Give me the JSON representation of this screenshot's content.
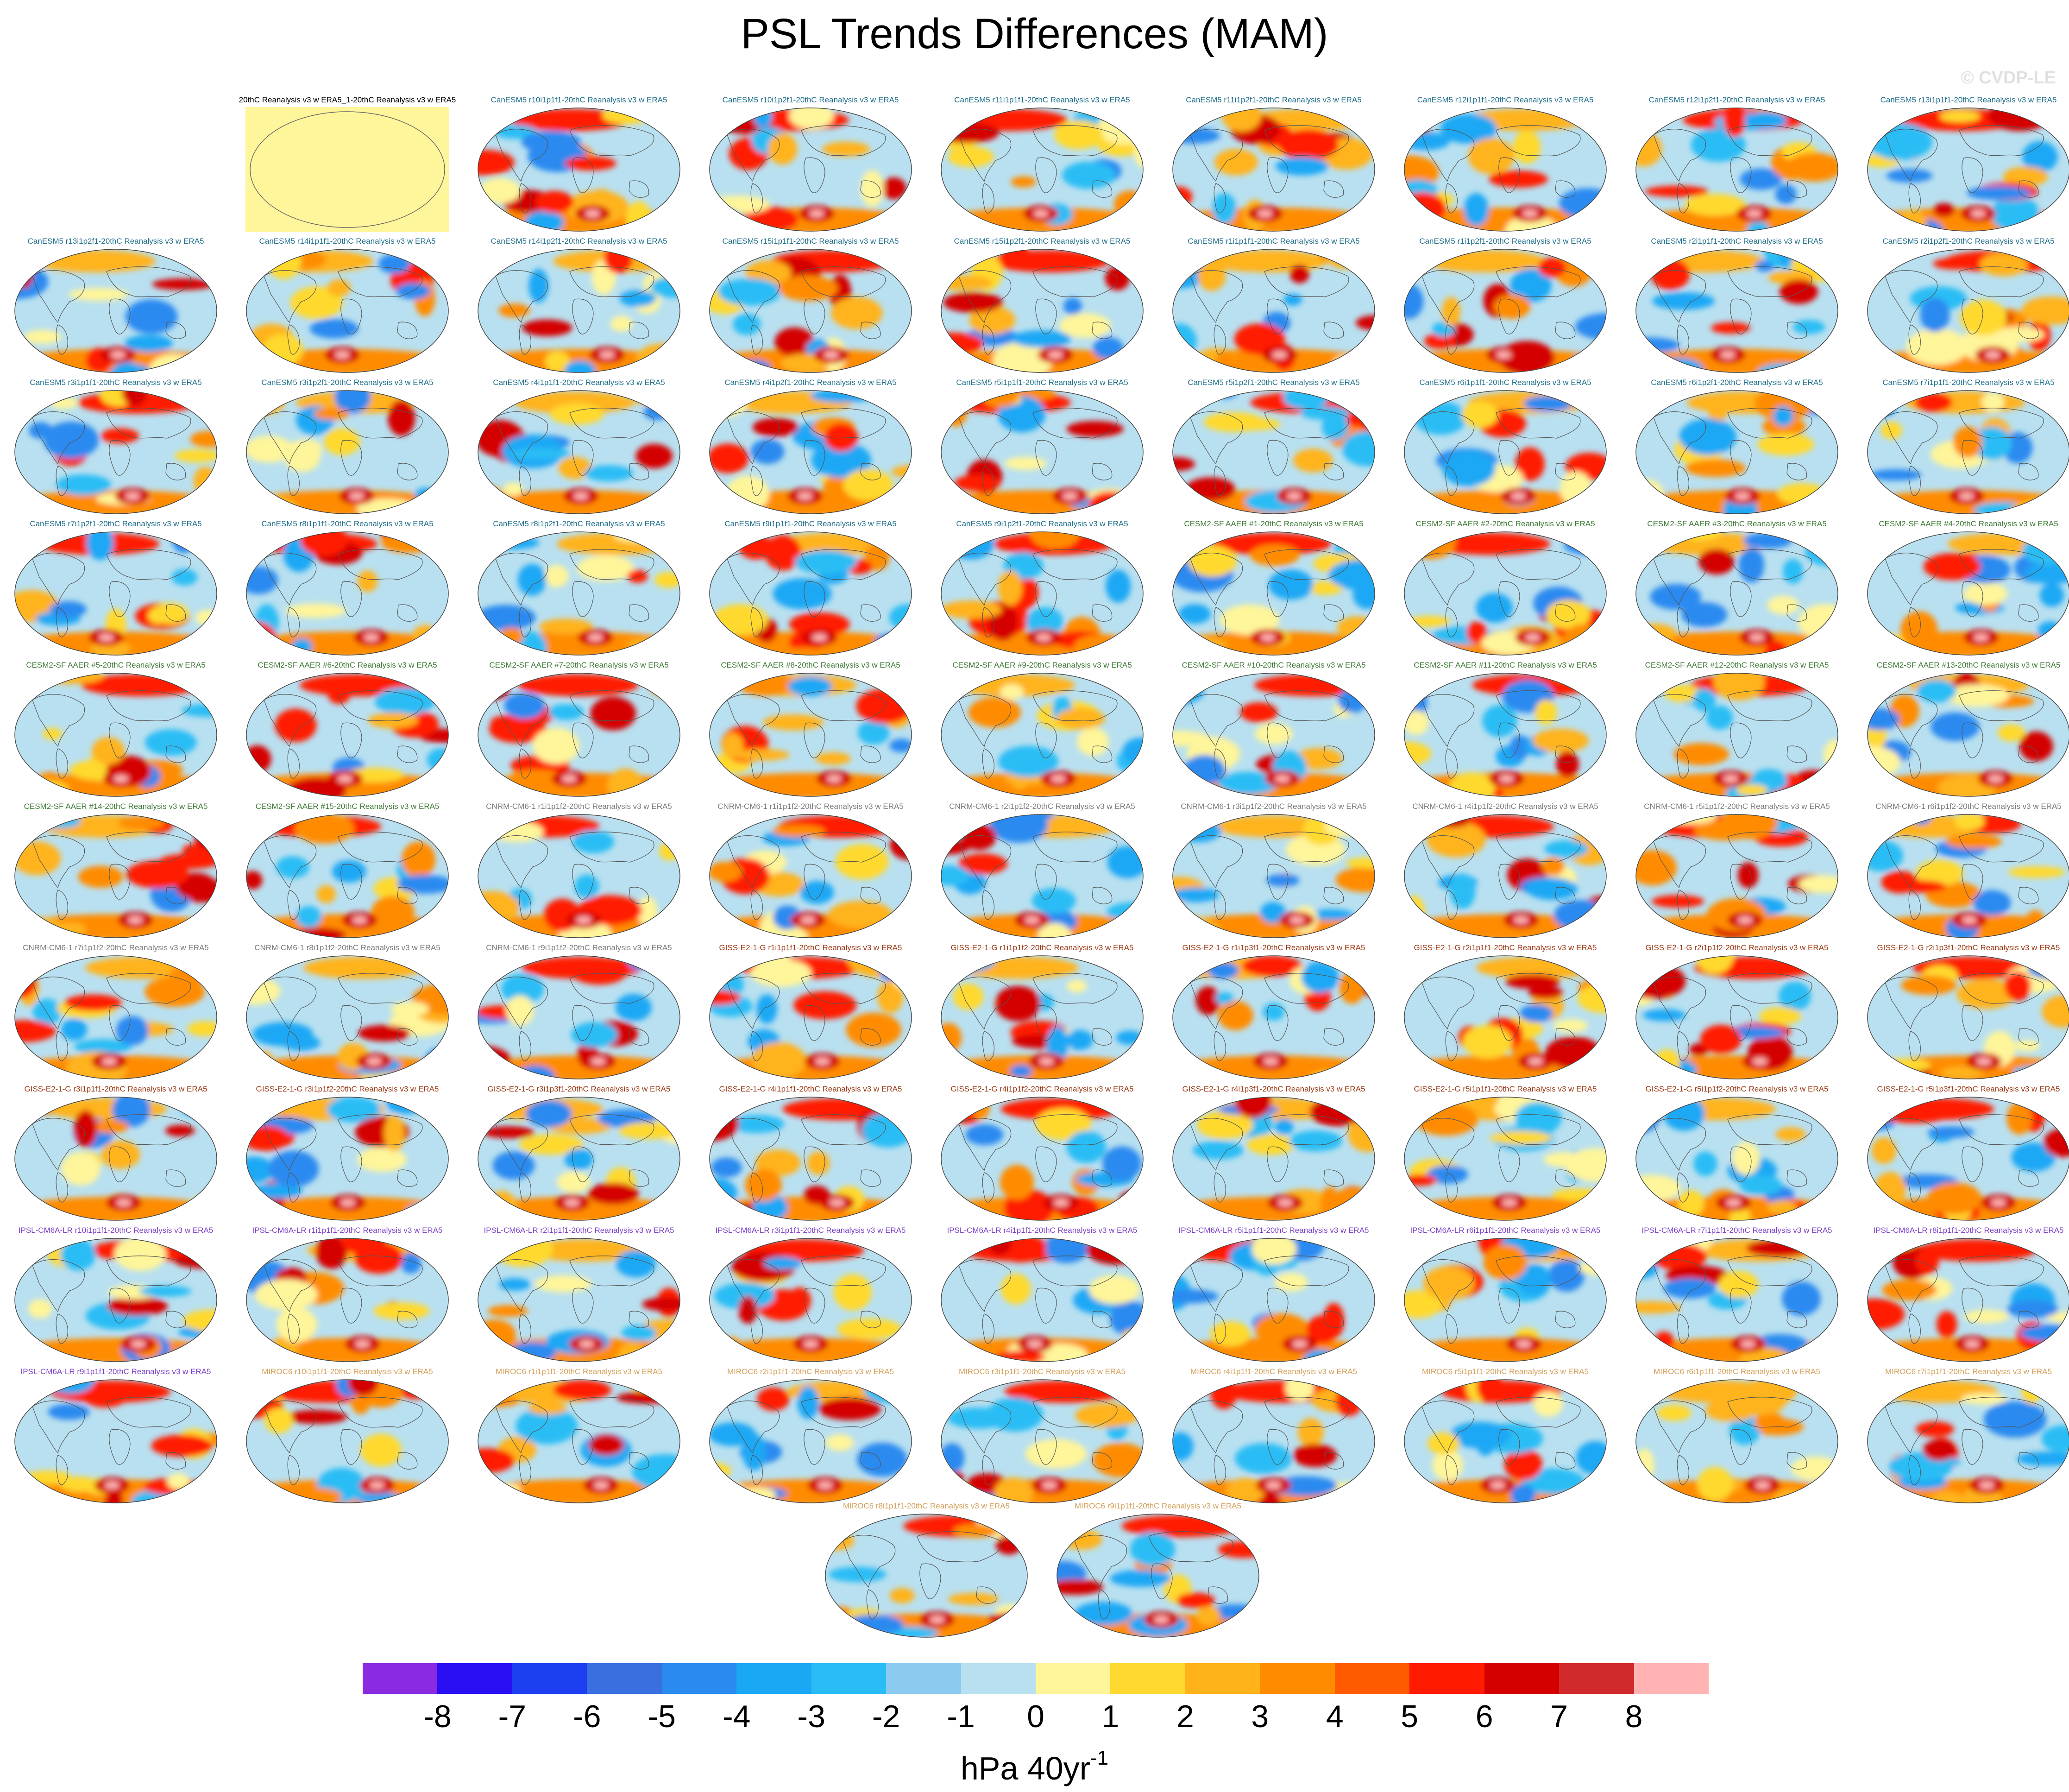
{
  "title": "PSL Trends Differences (MAM)",
  "watermark": "© CVDP-LE",
  "colors": {
    "CanESM5": "#1f6f8b",
    "CESM2-SF": "#3d7a35",
    "CNRM-CM6-1": "#7a7a7a",
    "GISS-E2-1-G": "#9c3a16",
    "IPSL-CM6A-LR": "#7b3fc8",
    "MIROC6": "#d4a05a",
    "reference": "#000000",
    "neutral_map": "#fff59a"
  },
  "panels": [
    {
      "label": "20thC Reanalysis v3 w ERA5_1-20thC Reanalysis v3 w ERA5",
      "group": "reference"
    },
    {
      "label": "CanESM5 r10i1p1f1-20thC Reanalysis v3 w ERA5",
      "group": "CanESM5"
    },
    {
      "label": "CanESM5 r10i1p2f1-20thC Reanalysis v3 w ERA5",
      "group": "CanESM5"
    },
    {
      "label": "CanESM5 r11i1p1f1-20thC Reanalysis v3 w ERA5",
      "group": "CanESM5"
    },
    {
      "label": "CanESM5 r11i1p2f1-20thC Reanalysis v3 w ERA5",
      "group": "CanESM5"
    },
    {
      "label": "CanESM5 r12i1p1f1-20thC Reanalysis v3 w ERA5",
      "group": "CanESM5"
    },
    {
      "label": "CanESM5 r12i1p2f1-20thC Reanalysis v3 w ERA5",
      "group": "CanESM5"
    },
    {
      "label": "CanESM5 r13i1p1f1-20thC Reanalysis v3 w ERA5",
      "group": "CanESM5"
    },
    {
      "label": "CanESM5 r13i1p2f1-20thC Reanalysis v3 w ERA5",
      "group": "CanESM5"
    },
    {
      "label": "CanESM5 r14i1p1f1-20thC Reanalysis v3 w ERA5",
      "group": "CanESM5"
    },
    {
      "label": "CanESM5 r14i1p2f1-20thC Reanalysis v3 w ERA5",
      "group": "CanESM5"
    },
    {
      "label": "CanESM5 r15i1p1f1-20thC Reanalysis v3 w ERA5",
      "group": "CanESM5"
    },
    {
      "label": "CanESM5 r15i1p2f1-20thC Reanalysis v3 w ERA5",
      "group": "CanESM5"
    },
    {
      "label": "CanESM5 r1i1p1f1-20thC Reanalysis v3 w ERA5",
      "group": "CanESM5"
    },
    {
      "label": "CanESM5 r1i1p2f1-20thC Reanalysis v3 w ERA5",
      "group": "CanESM5"
    },
    {
      "label": "CanESM5 r2i1p1f1-20thC Reanalysis v3 w ERA5",
      "group": "CanESM5"
    },
    {
      "label": "CanESM5 r2i1p2f1-20thC Reanalysis v3 w ERA5",
      "group": "CanESM5"
    },
    {
      "label": "CanESM5 r3i1p1f1-20thC Reanalysis v3 w ERA5",
      "group": "CanESM5"
    },
    {
      "label": "CanESM5 r3i1p2f1-20thC Reanalysis v3 w ERA5",
      "group": "CanESM5"
    },
    {
      "label": "CanESM5 r4i1p1f1-20thC Reanalysis v3 w ERA5",
      "group": "CanESM5"
    },
    {
      "label": "CanESM5 r4i1p2f1-20thC Reanalysis v3 w ERA5",
      "group": "CanESM5"
    },
    {
      "label": "CanESM5 r5i1p1f1-20thC Reanalysis v3 w ERA5",
      "group": "CanESM5"
    },
    {
      "label": "CanESM5 r5i1p2f1-20thC Reanalysis v3 w ERA5",
      "group": "CanESM5"
    },
    {
      "label": "CanESM5 r6i1p1f1-20thC Reanalysis v3 w ERA5",
      "group": "CanESM5"
    },
    {
      "label": "CanESM5 r6i1p2f1-20thC Reanalysis v3 w ERA5",
      "group": "CanESM5"
    },
    {
      "label": "CanESM5 r7i1p1f1-20thC Reanalysis v3 w ERA5",
      "group": "CanESM5"
    },
    {
      "label": "CanESM5 r7i1p2f1-20thC Reanalysis v3 w ERA5",
      "group": "CanESM5"
    },
    {
      "label": "CanESM5 r8i1p1f1-20thC Reanalysis v3 w ERA5",
      "group": "CanESM5"
    },
    {
      "label": "CanESM5 r8i1p2f1-20thC Reanalysis v3 w ERA5",
      "group": "CanESM5"
    },
    {
      "label": "CanESM5 r9i1p1f1-20thC Reanalysis v3 w ERA5",
      "group": "CanESM5"
    },
    {
      "label": "CanESM5 r9i1p2f1-20thC Reanalysis v3 w ERA5",
      "group": "CanESM5"
    },
    {
      "label": "CESM2-SF AAER #1-20thC Reanalysis v3 w ERA5",
      "group": "CESM2-SF"
    },
    {
      "label": "CESM2-SF AAER #2-20thC Reanalysis v3 w ERA5",
      "group": "CESM2-SF"
    },
    {
      "label": "CESM2-SF AAER #3-20thC Reanalysis v3 w ERA5",
      "group": "CESM2-SF"
    },
    {
      "label": "CESM2-SF AAER #4-20thC Reanalysis v3 w ERA5",
      "group": "CESM2-SF"
    },
    {
      "label": "CESM2-SF AAER #5-20thC Reanalysis v3 w ERA5",
      "group": "CESM2-SF"
    },
    {
      "label": "CESM2-SF AAER #6-20thC Reanalysis v3 w ERA5",
      "group": "CESM2-SF"
    },
    {
      "label": "CESM2-SF AAER #7-20thC Reanalysis v3 w ERA5",
      "group": "CESM2-SF"
    },
    {
      "label": "CESM2-SF AAER #8-20thC Reanalysis v3 w ERA5",
      "group": "CESM2-SF"
    },
    {
      "label": "CESM2-SF AAER #9-20thC Reanalysis v3 w ERA5",
      "group": "CESM2-SF"
    },
    {
      "label": "CESM2-SF AAER #10-20thC Reanalysis v3 w ERA5",
      "group": "CESM2-SF"
    },
    {
      "label": "CESM2-SF AAER #11-20thC Reanalysis v3 w ERA5",
      "group": "CESM2-SF"
    },
    {
      "label": "CESM2-SF AAER #12-20thC Reanalysis v3 w ERA5",
      "group": "CESM2-SF"
    },
    {
      "label": "CESM2-SF AAER #13-20thC Reanalysis v3 w ERA5",
      "group": "CESM2-SF"
    },
    {
      "label": "CESM2-SF AAER #14-20thC Reanalysis v3 w ERA5",
      "group": "CESM2-SF"
    },
    {
      "label": "CESM2-SF AAER #15-20thC Reanalysis v3 w ERA5",
      "group": "CESM2-SF"
    },
    {
      "label": "CNRM-CM6-1 r1i1p1f2-20thC Reanalysis v3 w ERA5",
      "group": "CNRM-CM6-1"
    },
    {
      "label": "CNRM-CM6-1 r1i1p1f2-20thC Reanalysis v3 w ERA5",
      "group": "CNRM-CM6-1"
    },
    {
      "label": "CNRM-CM6-1 r2i1p1f2-20thC Reanalysis v3 w ERA5",
      "group": "CNRM-CM6-1"
    },
    {
      "label": "CNRM-CM6-1 r3i1p1f2-20thC Reanalysis v3 w ERA5",
      "group": "CNRM-CM6-1"
    },
    {
      "label": "CNRM-CM6-1 r4i1p1f2-20thC Reanalysis v3 w ERA5",
      "group": "CNRM-CM6-1"
    },
    {
      "label": "CNRM-CM6-1 r5i1p1f2-20thC Reanalysis v3 w ERA5",
      "group": "CNRM-CM6-1"
    },
    {
      "label": "CNRM-CM6-1 r6i1p1f2-20thC Reanalysis v3 w ERA5",
      "group": "CNRM-CM6-1"
    },
    {
      "label": "CNRM-CM6-1 r7i1p1f2-20thC Reanalysis v3 w ERA5",
      "group": "CNRM-CM6-1"
    },
    {
      "label": "CNRM-CM6-1 r8i1p1f2-20thC Reanalysis v3 w ERA5",
      "group": "CNRM-CM6-1"
    },
    {
      "label": "CNRM-CM6-1 r9i1p1f2-20thC Reanalysis v3 w ERA5",
      "group": "CNRM-CM6-1"
    },
    {
      "label": "GISS-E2-1-G r1i1p1f1-20thC Reanalysis v3 w ERA5",
      "group": "GISS-E2-1-G"
    },
    {
      "label": "GISS-E2-1-G r1i1p1f2-20thC Reanalysis v3 w ERA5",
      "group": "GISS-E2-1-G"
    },
    {
      "label": "GISS-E2-1-G r1i1p3f1-20thC Reanalysis v3 w ERA5",
      "group": "GISS-E2-1-G"
    },
    {
      "label": "GISS-E2-1-G r2i1p1f1-20thC Reanalysis v3 w ERA5",
      "group": "GISS-E2-1-G"
    },
    {
      "label": "GISS-E2-1-G r2i1p1f2-20thC Reanalysis v3 w ERA5",
      "group": "GISS-E2-1-G"
    },
    {
      "label": "GISS-E2-1-G r2i1p3f1-20thC Reanalysis v3 w ERA5",
      "group": "GISS-E2-1-G"
    },
    {
      "label": "GISS-E2-1-G r3i1p1f1-20thC Reanalysis v3 w ERA5",
      "group": "GISS-E2-1-G"
    },
    {
      "label": "GISS-E2-1-G r3i1p1f2-20thC Reanalysis v3 w ERA5",
      "group": "GISS-E2-1-G"
    },
    {
      "label": "GISS-E2-1-G r3i1p3f1-20thC Reanalysis v3 w ERA5",
      "group": "GISS-E2-1-G"
    },
    {
      "label": "GISS-E2-1-G r4i1p1f1-20thC Reanalysis v3 w ERA5",
      "group": "GISS-E2-1-G"
    },
    {
      "label": "GISS-E2-1-G r4i1p1f2-20thC Reanalysis v3 w ERA5",
      "group": "GISS-E2-1-G"
    },
    {
      "label": "GISS-E2-1-G r4i1p3f1-20thC Reanalysis v3 w ERA5",
      "group": "GISS-E2-1-G"
    },
    {
      "label": "GISS-E2-1-G r5i1p1f1-20thC Reanalysis v3 w ERA5",
      "group": "GISS-E2-1-G"
    },
    {
      "label": "GISS-E2-1-G r5i1p1f2-20thC Reanalysis v3 w ERA5",
      "group": "GISS-E2-1-G"
    },
    {
      "label": "GISS-E2-1-G r5i1p3f1-20thC Reanalysis v3 w ERA5",
      "group": "GISS-E2-1-G"
    },
    {
      "label": "IPSL-CM6A-LR r10i1p1f1-20thC Reanalysis v3 w ERA5",
      "group": "IPSL-CM6A-LR"
    },
    {
      "label": "IPSL-CM6A-LR r1i1p1f1-20thC Reanalysis v3 w ERA5",
      "group": "IPSL-CM6A-LR"
    },
    {
      "label": "IPSL-CM6A-LR r2i1p1f1-20thC Reanalysis v3 w ERA5",
      "group": "IPSL-CM6A-LR"
    },
    {
      "label": "IPSL-CM6A-LR r3i1p1f1-20thC Reanalysis v3 w ERA5",
      "group": "IPSL-CM6A-LR"
    },
    {
      "label": "IPSL-CM6A-LR r4i1p1f1-20thC Reanalysis v3 w ERA5",
      "group": "IPSL-CM6A-LR"
    },
    {
      "label": "IPSL-CM6A-LR r5i1p1f1-20thC Reanalysis v3 w ERA5",
      "group": "IPSL-CM6A-LR"
    },
    {
      "label": "IPSL-CM6A-LR r6i1p1f1-20thC Reanalysis v3 w ERA5",
      "group": "IPSL-CM6A-LR"
    },
    {
      "label": "IPSL-CM6A-LR r7i1p1f1-20thC Reanalysis v3 w ERA5",
      "group": "IPSL-CM6A-LR"
    },
    {
      "label": "IPSL-CM6A-LR r8i1p1f1-20thC Reanalysis v3 w ERA5",
      "group": "IPSL-CM6A-LR"
    },
    {
      "label": "IPSL-CM6A-LR r9i1p1f1-20thC Reanalysis v3 w ERA5",
      "group": "IPSL-CM6A-LR"
    },
    {
      "label": "MIROC6 r10i1p1f1-20thC Reanalysis v3 w ERA5",
      "group": "MIROC6"
    },
    {
      "label": "MIROC6 r1i1p1f1-20thC Reanalysis v3 w ERA5",
      "group": "MIROC6"
    },
    {
      "label": "MIROC6 r2i1p1f1-20thC Reanalysis v3 w ERA5",
      "group": "MIROC6"
    },
    {
      "label": "MIROC6 r3i1p1f1-20thC Reanalysis v3 w ERA5",
      "group": "MIROC6"
    },
    {
      "label": "MIROC6 r4i1p1f1-20thC Reanalysis v3 w ERA5",
      "group": "MIROC6"
    },
    {
      "label": "MIROC6 r5i1p1f1-20thC Reanalysis v3 w ERA5",
      "group": "MIROC6"
    },
    {
      "label": "MIROC6 r6i1p1f1-20thC Reanalysis v3 w ERA5",
      "group": "MIROC6"
    },
    {
      "label": "MIROC6 r7i1p1f1-20thC Reanalysis v3 w ERA5",
      "group": "MIROC6"
    },
    {
      "label": "MIROC6 r8i1p1f1-20thC Reanalysis v3 w ERA5",
      "group": "MIROC6"
    },
    {
      "label": "MIROC6 r9i1p1f1-20thC Reanalysis v3 w ERA5",
      "group": "MIROC6"
    }
  ],
  "colorbar": {
    "ticks": [
      "-8",
      "-7",
      "-6",
      "-5",
      "-4",
      "-3",
      "-2",
      "-1",
      "0",
      "1",
      "2",
      "3",
      "4",
      "5",
      "6",
      "7",
      "8"
    ],
    "colors": [
      "#8a2be2",
      "#2a0ff5",
      "#1e3ff0",
      "#3a6fe0",
      "#2a8af0",
      "#1aa8f5",
      "#2abdf5",
      "#8ccaf0",
      "#b9e0f0",
      "#fff59a",
      "#ffd92f",
      "#ffb31a",
      "#ff8c00",
      "#ff5a00",
      "#ff1a00",
      "#d40000",
      "#d12a2a",
      "#ffb3b3"
    ],
    "unit_base": "hPa 40yr",
    "unit_exp": "-1"
  }
}
